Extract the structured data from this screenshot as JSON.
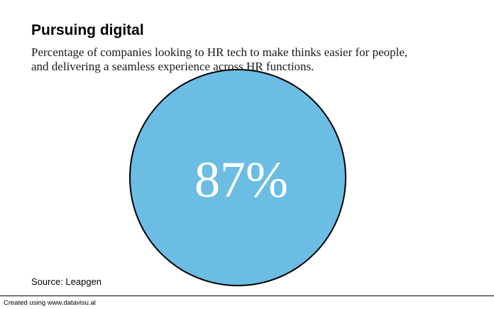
{
  "chart_data": {
    "type": "pie",
    "title": "Pursuing digital",
    "subtitle_lines": [
      "Percentage of companies looking to HR tech to make thinks easier for people,",
      "and delivering a seamless experience across HR functions."
    ],
    "value_label": "87%",
    "value": 87,
    "source": "Source: Leapgen",
    "fill_color": "#6bbde3",
    "outline_color": "#000000",
    "label_color": "#ffffff"
  },
  "footer": {
    "credit": "Created using www.datavisu.al"
  }
}
